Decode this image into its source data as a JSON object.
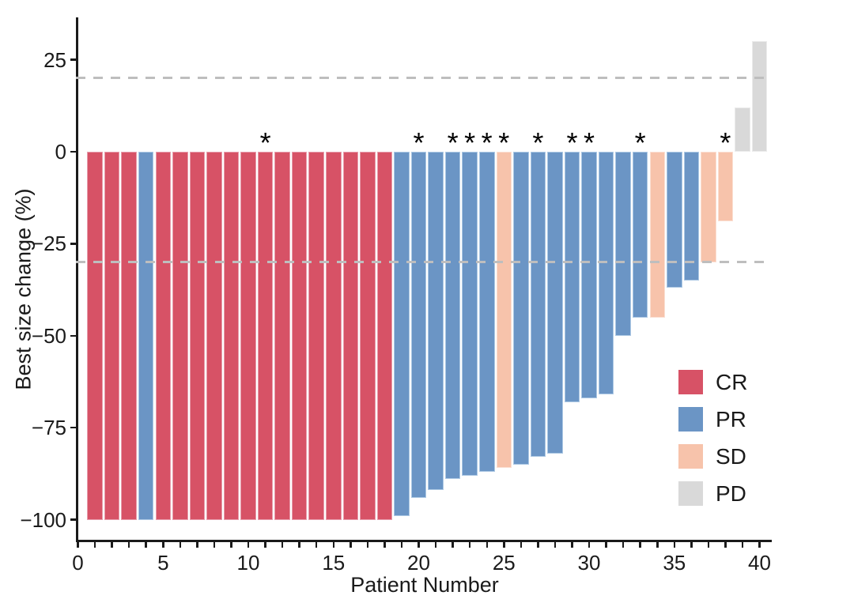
{
  "chart_data": {
    "type": "bar",
    "title": "",
    "xlabel": "Patient Number",
    "ylabel": "Best size change (%)",
    "xlim": [
      -0.7,
      40.8
    ],
    "ylim": [
      -105.5,
      36.5
    ],
    "grid": false,
    "legend_position": "bottom-right-inside",
    "reference_lines_y": [
      20,
      -30
    ],
    "reference_line_style": "dashed",
    "y_ticks": [
      {
        "value": 25,
        "label": "25"
      },
      {
        "value": 0,
        "label": "0"
      },
      {
        "value": -25,
        "label": "−25"
      },
      {
        "value": -50,
        "label": "−50"
      },
      {
        "value": -75,
        "label": "−75"
      },
      {
        "value": -100,
        "label": "−100"
      }
    ],
    "x_major_ticks": [
      {
        "value": 0,
        "label": "0"
      },
      {
        "value": 5,
        "label": "5"
      },
      {
        "value": 10,
        "label": "10"
      },
      {
        "value": 15,
        "label": "15"
      },
      {
        "value": 20,
        "label": "20"
      },
      {
        "value": 25,
        "label": "25"
      },
      {
        "value": 30,
        "label": "30"
      },
      {
        "value": 35,
        "label": "35"
      },
      {
        "value": 40,
        "label": "40"
      }
    ],
    "x_minor_tick_every": 1,
    "asterisk_marker": "*",
    "patients": [
      {
        "n": 1,
        "value": -100,
        "response": "CR",
        "star": false
      },
      {
        "n": 2,
        "value": -100,
        "response": "CR",
        "star": false
      },
      {
        "n": 3,
        "value": -100,
        "response": "CR",
        "star": false
      },
      {
        "n": 4,
        "value": -100,
        "response": "PR",
        "star": false
      },
      {
        "n": 5,
        "value": -100,
        "response": "CR",
        "star": false
      },
      {
        "n": 6,
        "value": -100,
        "response": "CR",
        "star": false
      },
      {
        "n": 7,
        "value": -100,
        "response": "CR",
        "star": false
      },
      {
        "n": 8,
        "value": -100,
        "response": "CR",
        "star": false
      },
      {
        "n": 9,
        "value": -100,
        "response": "CR",
        "star": false
      },
      {
        "n": 10,
        "value": -100,
        "response": "CR",
        "star": false
      },
      {
        "n": 11,
        "value": -100,
        "response": "CR",
        "star": true
      },
      {
        "n": 12,
        "value": -100,
        "response": "CR",
        "star": false
      },
      {
        "n": 13,
        "value": -100,
        "response": "CR",
        "star": false
      },
      {
        "n": 14,
        "value": -100,
        "response": "CR",
        "star": false
      },
      {
        "n": 15,
        "value": -100,
        "response": "CR",
        "star": false
      },
      {
        "n": 16,
        "value": -100,
        "response": "CR",
        "star": false
      },
      {
        "n": 17,
        "value": -100,
        "response": "CR",
        "star": false
      },
      {
        "n": 18,
        "value": -100,
        "response": "CR",
        "star": false
      },
      {
        "n": 19,
        "value": -99,
        "response": "PR",
        "star": false
      },
      {
        "n": 20,
        "value": -94,
        "response": "PR",
        "star": true
      },
      {
        "n": 21,
        "value": -92,
        "response": "PR",
        "star": false
      },
      {
        "n": 22,
        "value": -89,
        "response": "PR",
        "star": true
      },
      {
        "n": 23,
        "value": -88,
        "response": "PR",
        "star": true
      },
      {
        "n": 24,
        "value": -87,
        "response": "PR",
        "star": true
      },
      {
        "n": 25,
        "value": -86,
        "response": "SD",
        "star": true
      },
      {
        "n": 26,
        "value": -85,
        "response": "PR",
        "star": false
      },
      {
        "n": 27,
        "value": -83,
        "response": "PR",
        "star": true
      },
      {
        "n": 28,
        "value": -82,
        "response": "PR",
        "star": false
      },
      {
        "n": 29,
        "value": -68,
        "response": "PR",
        "star": true
      },
      {
        "n": 30,
        "value": -67,
        "response": "PR",
        "star": true
      },
      {
        "n": 31,
        "value": -66,
        "response": "PR",
        "star": false
      },
      {
        "n": 32,
        "value": -50,
        "response": "PR",
        "star": false
      },
      {
        "n": 33,
        "value": -45,
        "response": "PR",
        "star": true
      },
      {
        "n": 34,
        "value": -45,
        "response": "SD",
        "star": false
      },
      {
        "n": 35,
        "value": -37,
        "response": "PR",
        "star": false
      },
      {
        "n": 36,
        "value": -35,
        "response": "PR",
        "star": false
      },
      {
        "n": 37,
        "value": -30,
        "response": "SD",
        "star": false
      },
      {
        "n": 38,
        "value": -19,
        "response": "SD",
        "star": true
      },
      {
        "n": 39,
        "value": 12,
        "response": "PD",
        "star": false
      },
      {
        "n": 40,
        "value": 30,
        "response": "PD",
        "star": false
      }
    ]
  },
  "legend": [
    {
      "label": "CR",
      "color": "#D75266",
      "border": "#E79DAC"
    },
    {
      "label": "PR",
      "color": "#6B95C5",
      "border": "#ACC8E4"
    },
    {
      "label": "SD",
      "color": "#F7C3AB",
      "border": "#FBDFD2"
    },
    {
      "label": "PD",
      "color": "#D9D9D9",
      "border": "#EBEBEB"
    }
  ],
  "colors": {
    "reference_line": "#BEBEBE",
    "axis": "#1A1A1A",
    "asterisk": "#000000",
    "background": "#FFFFFF"
  }
}
